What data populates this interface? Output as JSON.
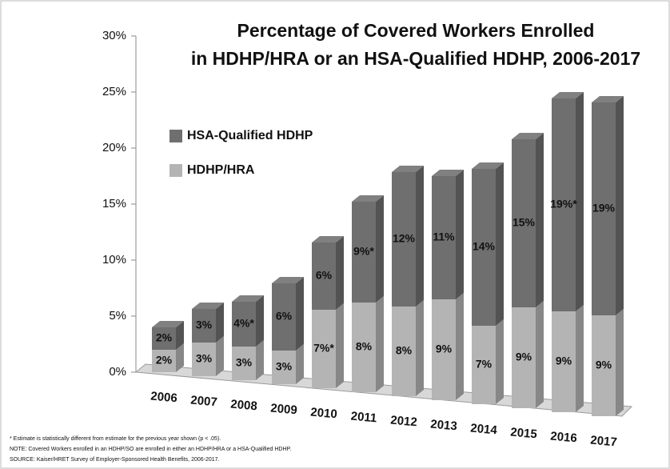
{
  "chart_data": {
    "type": "stacked_bar_3d",
    "title": [
      "Percentage of Covered Workers Enrolled",
      "in HDHP/HRA or an HSA-Qualified HDHP, 2006-2017"
    ],
    "categories": [
      "2006",
      "2007",
      "2008",
      "2009",
      "2010",
      "2011",
      "2012",
      "2013",
      "2014",
      "2015",
      "2016",
      "2017"
    ],
    "series": [
      {
        "name": "HDHP/HRA",
        "color": "#b4b4b4",
        "values": [
          2,
          3,
          3,
          3,
          7,
          8,
          8,
          9,
          7,
          9,
          9,
          9
        ],
        "value_labels": [
          "2%",
          "3%",
          "3%",
          "3%",
          "7%*",
          "8%",
          "8%",
          "9%",
          "7%",
          "9%",
          "9%",
          "9%"
        ]
      },
      {
        "name": "HSA-Qualified HDHP",
        "color": "#6f6f6f",
        "values": [
          2,
          3,
          4,
          6,
          6,
          9,
          12,
          11,
          14,
          15,
          19,
          19
        ],
        "value_labels": [
          "2%",
          "3%",
          "4%*",
          "6%",
          "6%",
          "9%*",
          "12%",
          "11%",
          "14%",
          "15%",
          "19%*",
          "19%"
        ]
      }
    ],
    "ylim": [
      0,
      30
    ],
    "yticks": [
      {
        "value": 0,
        "label": "0%"
      },
      {
        "value": 5,
        "label": "5%"
      },
      {
        "value": 10,
        "label": "10%"
      },
      {
        "value": 15,
        "label": "15%"
      },
      {
        "value": 20,
        "label": "20%"
      },
      {
        "value": 25,
        "label": "25%"
      },
      {
        "value": 30,
        "label": "30%"
      }
    ],
    "footnotes": [
      "* Estimate is statistically different from estimate for the previous year shown (p < .05).",
      "NOTE: Covered Workers enrolled in an HDHP/SO are enrolled in either an HDHP/HRA or a HSA-Qualified HDHP.",
      "SOURCE:  Kaiser/HRET Survey of Employer-Sponsored Health Benefits, 2006-2017."
    ]
  }
}
